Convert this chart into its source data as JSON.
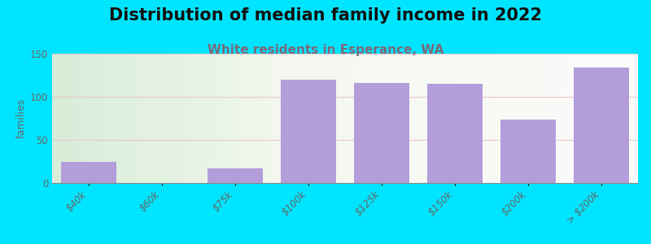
{
  "title": "Distribution of median family income in 2022",
  "subtitle": "White residents in Esperance, WA",
  "ylabel": "families",
  "categories": [
    "$40k",
    "$60k",
    "$75k",
    "$100k",
    "$125k",
    "$150k",
    "$200k",
    "> $200k"
  ],
  "values": [
    25,
    0,
    17,
    120,
    116,
    115,
    74,
    134
  ],
  "bar_color": "#b39ddb",
  "bg_color": "#00e5ff",
  "plot_bg_left_color": "#d9edd9",
  "plot_bg_right_color": "#f0f5ee",
  "plot_bg_far_right": "#f5f5f0",
  "ylim": [
    0,
    150
  ],
  "yticks": [
    0,
    50,
    100,
    150
  ],
  "grid_color": "#e8c8cc",
  "title_fontsize": 15,
  "subtitle_fontsize": 11,
  "subtitle_color": "#7a6a7a",
  "ylabel_fontsize": 9,
  "tick_fontsize": 8.5,
  "tick_color": "#666666",
  "bar_width": 0.75
}
